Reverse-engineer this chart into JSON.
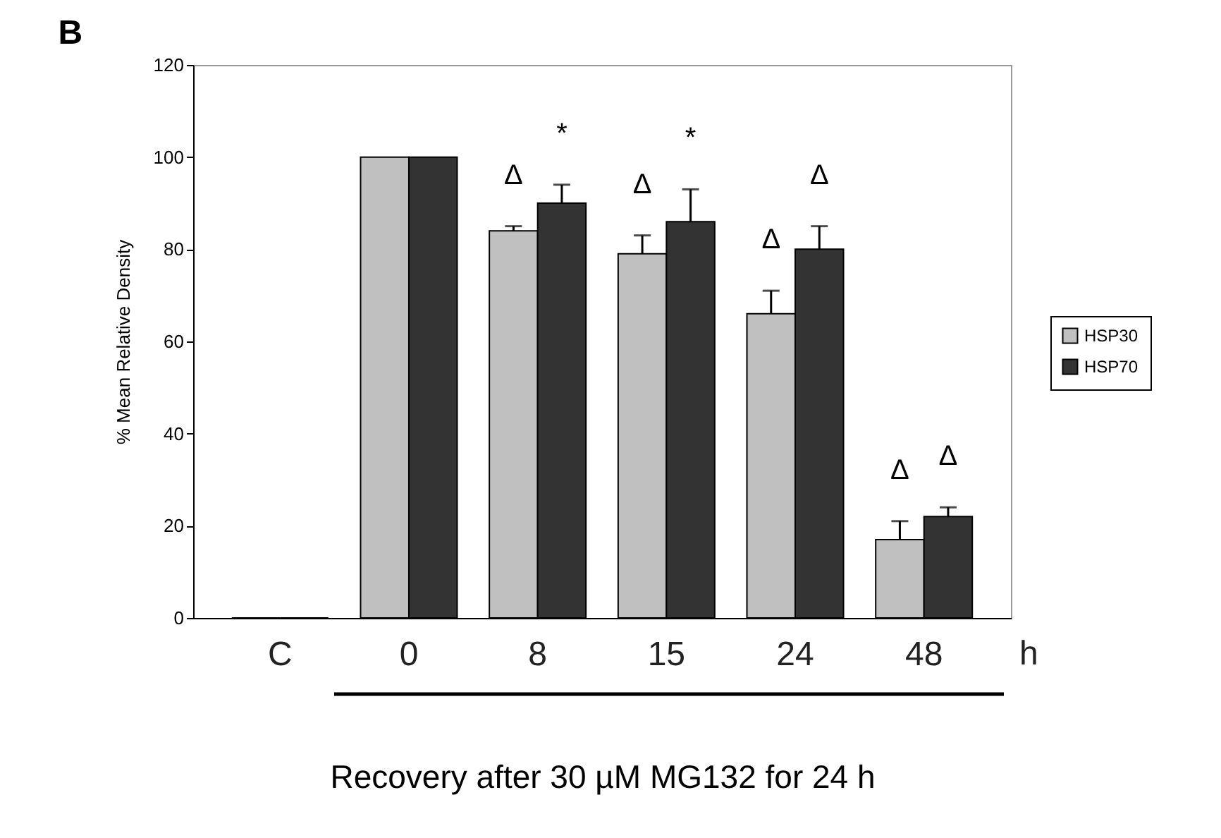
{
  "chart_data": {
    "type": "bar",
    "title": "B",
    "ylabel": "% Mean Relative Density",
    "xlabel": "Recovery after 30 µM MG132 for 24 h",
    "categories": [
      "C",
      "0",
      "8",
      "15",
      "24",
      "48"
    ],
    "series": [
      {
        "name": "HSP30",
        "color": "#c0c0c0",
        "values": [
          0,
          100,
          84,
          79,
          66,
          17
        ],
        "errors": [
          null,
          null,
          [
            84,
            85
          ],
          [
            79,
            83
          ],
          [
            66,
            71
          ],
          [
            17,
            21
          ]
        ]
      },
      {
        "name": "HSP70",
        "color": "#333333",
        "values": [
          0,
          100,
          90,
          86,
          80,
          22
        ],
        "errors": [
          null,
          null,
          [
            90,
            94
          ],
          [
            86,
            93
          ],
          [
            80,
            85
          ],
          [
            22,
            24
          ]
        ]
      }
    ],
    "ylim": [
      0,
      120
    ],
    "yticks": [
      0,
      20,
      40,
      60,
      80,
      100,
      120
    ],
    "annotations": [
      "Δ",
      "*",
      "Δ",
      "*",
      "Δ",
      "Δ",
      "Δ",
      "Δ",
      "h"
    ],
    "grid": false,
    "legend": "right"
  }
}
